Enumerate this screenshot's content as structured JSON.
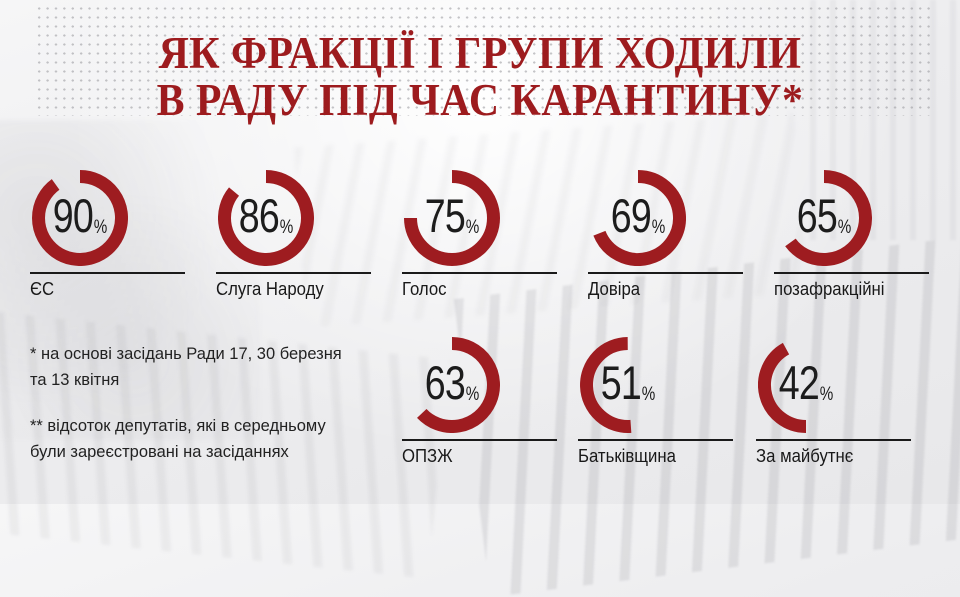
{
  "title": {
    "line1": "ЯК ФРАКЦІЇ І ГРУПИ ХОДИЛИ",
    "line2": "В РАДУ ПІД ЧАС КАРАНТИНУ*"
  },
  "footnotes": {
    "note1": "* на основі засідань Ради 17, 30 березня та 13 квітня",
    "note2": "** відсоток депутатів, які в середньому були зареєстровані на засіданнях"
  },
  "colors": {
    "accent_red": "#9e1c20",
    "title_red": "#9d1b1e",
    "text_dark": "#1c1c1c",
    "rule_black": "#1a1a1a",
    "dot_gray": "#c8c8ca"
  },
  "chart_data": {
    "type": "pie",
    "subtype": "donut-grid",
    "title": "ЯК ФРАКЦІЇ І ГРУПИ ХОДИЛИ В РАДУ ПІД ЧАС КАРАНТИНУ*",
    "unit": "%",
    "legend_position": "below-each-donut",
    "value_range": [
      0,
      100
    ],
    "series": [
      {
        "label": "ЄС",
        "value": 90,
        "row": 1,
        "arc_start_deg": 0
      },
      {
        "label": "Слуга Народу",
        "value": 86,
        "row": 1,
        "arc_start_deg": 0
      },
      {
        "label": "Голос",
        "value": 75,
        "row": 1,
        "arc_start_deg": 0
      },
      {
        "label": "Довіра",
        "value": 69,
        "row": 1,
        "arc_start_deg": 0
      },
      {
        "label": "позафракційні",
        "value": 65,
        "row": 1,
        "arc_start_deg": 0
      },
      {
        "label": "ОПЗЖ",
        "value": 63,
        "row": 2,
        "arc_start_deg": 0
      },
      {
        "label": "Батьківщина",
        "value": 51,
        "row": 2,
        "arc_start_deg": 176
      },
      {
        "label": "За майбутнє",
        "value": 42,
        "row": 2,
        "arc_start_deg": 180
      }
    ]
  }
}
